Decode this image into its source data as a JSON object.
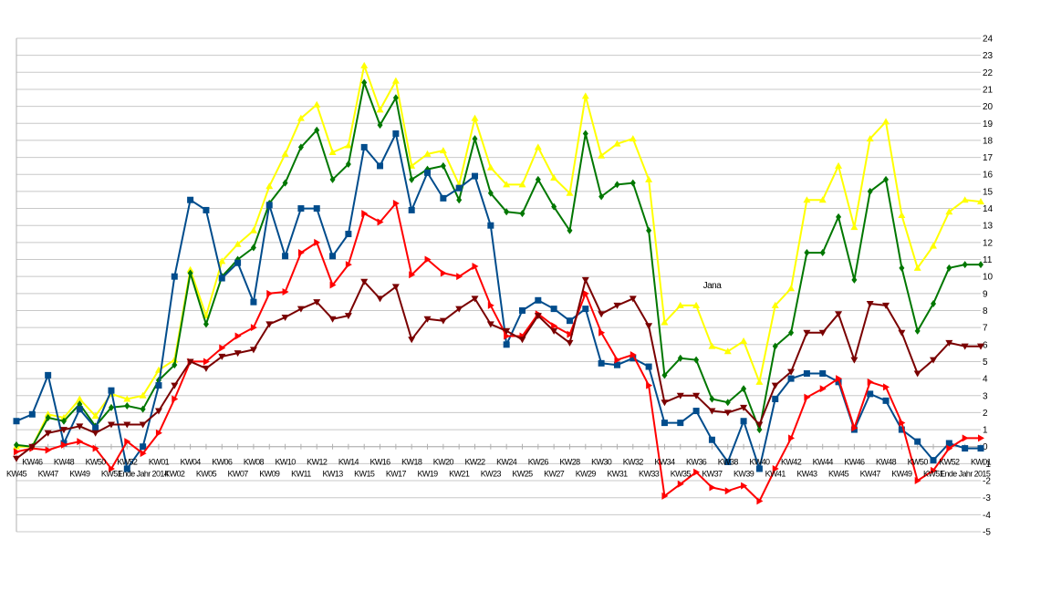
{
  "chart_data": {
    "type": "line",
    "title": "",
    "xlabel": "",
    "ylabel": "",
    "ylim": [
      -5,
      24
    ],
    "y_ticks": [
      -5,
      -4,
      -3,
      -2,
      -1,
      0,
      1,
      2,
      3,
      4,
      5,
      6,
      7,
      8,
      9,
      10,
      11,
      12,
      13,
      14,
      15,
      16,
      17,
      18,
      19,
      20,
      21,
      22,
      23,
      24
    ],
    "grid": true,
    "legend": "none",
    "x_tick_labels": [
      "KW45",
      "KW46",
      "KW47",
      "KW48",
      "KW49",
      "KW50",
      "KW51",
      "KW52",
      "Ende Jahr 2014",
      "KW01",
      "KW02",
      "KW04",
      "KW05",
      "KW06",
      "KW07",
      "KW08",
      "KW09",
      "KW10",
      "KW11",
      "KW12",
      "KW13",
      "KW14",
      "KW15",
      "KW16",
      "KW17",
      "KW18",
      "KW19",
      "KW20",
      "KW21",
      "KW22",
      "KW23",
      "KW24",
      "KW25",
      "KW26",
      "KW27",
      "KW28",
      "KW29",
      "KW30",
      "KW31",
      "KW32",
      "KW33",
      "KW34",
      "KW35",
      "KW36",
      "KW37",
      "KW38",
      "KW39",
      "KW40",
      "KW41",
      "KW42",
      "KW43",
      "KW44",
      "KW45",
      "KW46",
      "KW47",
      "KW48",
      "KW49",
      "KW50",
      "KW51",
      "KW52",
      "Ende Jahr 2015",
      "KW01"
    ],
    "annotation": {
      "text": "Jana",
      "x_index": 44,
      "y": 9.3
    },
    "series": [
      {
        "color": "#ffff00",
        "marker": "triangle-up",
        "values": [
          0,
          0,
          1.9,
          1.7,
          2.8,
          1.8,
          3.1,
          2.8,
          3,
          4.5,
          5.1,
          10.4,
          7.7,
          10.9,
          11.9,
          12.7,
          15.3,
          17.2,
          19.3,
          20.1,
          17.3,
          17.7,
          22.4,
          19.8,
          21.5,
          16.5,
          17.2,
          17.4,
          15.4,
          19.3,
          16.4,
          15.4,
          15.4,
          17.6,
          15.8,
          14.9,
          20.6,
          17.1,
          17.8,
          18.1,
          15.7,
          7.3,
          8.3,
          8.3,
          5.9,
          5.6,
          6.2,
          3.8,
          8.3,
          9.3,
          14.5,
          14.5,
          16.5,
          12.9,
          18.1,
          19.1,
          13.6,
          10.5,
          11.8,
          13.8,
          14.5,
          14.4
        ]
      },
      {
        "color": "#007700",
        "marker": "diamond",
        "values": [
          0.1,
          0,
          1.7,
          1.5,
          2.5,
          1.2,
          2.3,
          2.4,
          2.2,
          3.9,
          4.8,
          10.2,
          7.2,
          10,
          11,
          11.7,
          14.3,
          15.5,
          17.6,
          18.6,
          15.7,
          16.6,
          21.4,
          18.9,
          20.5,
          15.7,
          16.3,
          16.5,
          14.5,
          18.1,
          14.9,
          13.8,
          13.7,
          15.7,
          14.1,
          12.7,
          18.4,
          14.7,
          15.4,
          15.5,
          12.7,
          4.2,
          5.2,
          5.1,
          2.8,
          2.6,
          3.4,
          1,
          5.9,
          6.7,
          11.4,
          11.4,
          13.5,
          9.8,
          15,
          15.7,
          10.5,
          6.8,
          8.4,
          10.5,
          10.7,
          10.7
        ]
      },
      {
        "color": "#004c8c",
        "marker": "square",
        "values": [
          1.5,
          1.9,
          4.2,
          0.2,
          2.2,
          1.1,
          3.3,
          -1.3,
          0,
          3.6,
          10,
          14.5,
          13.9,
          9.9,
          10.8,
          8.5,
          14.2,
          11.2,
          14,
          14,
          11.2,
          12.5,
          17.6,
          16.5,
          18.4,
          13.9,
          16.1,
          14.6,
          15.2,
          15.9,
          13,
          6,
          8,
          8.6,
          8.1,
          7.4,
          8.1,
          4.9,
          4.8,
          5.2,
          4.7,
          1.4,
          1.4,
          2.1,
          0.4,
          -0.9,
          1.5,
          -1.3,
          2.8,
          4,
          4.3,
          4.3,
          3.8,
          1,
          3.1,
          2.7,
          1,
          0.3,
          -0.8,
          0.2,
          -0.1,
          -0.1
        ]
      },
      {
        "color": "#ff0000",
        "marker": "triangle-right",
        "values": [
          -0.3,
          -0.1,
          -0.2,
          0.1,
          0.3,
          -0.1,
          -1.3,
          0.3,
          -0.4,
          0.8,
          2.8,
          5,
          5,
          5.8,
          6.5,
          7,
          9,
          9.1,
          11.4,
          12,
          9.5,
          10.7,
          13.7,
          13.2,
          14.3,
          10.1,
          11,
          10.2,
          10,
          10.6,
          8.3,
          6.5,
          6.5,
          7.8,
          7.1,
          6.6,
          9,
          6.7,
          5.1,
          5.4,
          3.6,
          -2.9,
          -2.2,
          -1.5,
          -2.4,
          -2.6,
          -2.3,
          -3.2,
          -1.3,
          0.5,
          2.9,
          3.4,
          4,
          1.1,
          3.8,
          3.5,
          1.4,
          -2,
          -1.4,
          -0.1,
          0.5,
          0.5
        ]
      },
      {
        "color": "#7a0000",
        "marker": "triangle-down",
        "values": [
          -0.7,
          0,
          0.8,
          1,
          1.2,
          0.8,
          1.3,
          1.3,
          1.3,
          2.1,
          3.6,
          5,
          4.6,
          5.3,
          5.5,
          5.7,
          7.2,
          7.6,
          8.1,
          8.5,
          7.5,
          7.7,
          9.7,
          8.7,
          9.4,
          6.3,
          7.5,
          7.4,
          8.1,
          8.7,
          7.2,
          6.8,
          6.3,
          7.7,
          6.8,
          6.1,
          9.8,
          7.8,
          8.3,
          8.7,
          7.1,
          2.6,
          3,
          3,
          2.1,
          2,
          2.3,
          1.3,
          3.6,
          4.4,
          6.7,
          6.7,
          7.8,
          5.1,
          8.4,
          8.3,
          6.7,
          4.3,
          5.1,
          6.1,
          5.9,
          5.9
        ]
      }
    ]
  }
}
